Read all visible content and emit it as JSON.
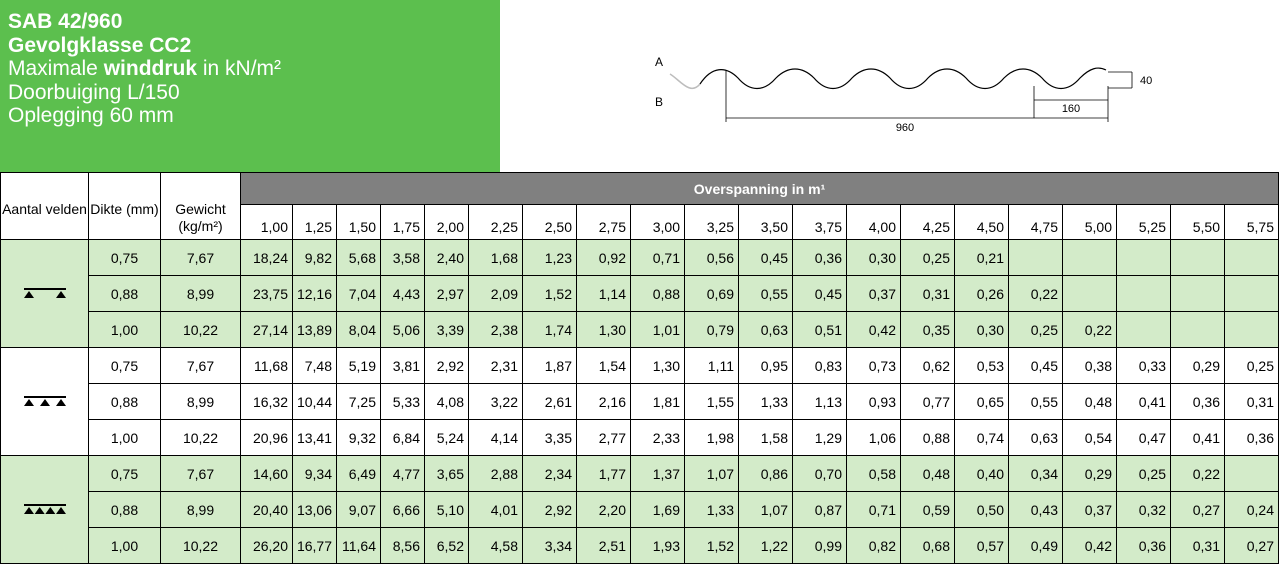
{
  "header": {
    "title": "SAB 42/960",
    "subtitle": "Gevolgklasse CC2",
    "line3_pre": "Maximale ",
    "line3_bold": "winddruk",
    "line3_post": " in kN/m²",
    "line4": "Doorbuiging L/150",
    "line5": "Oplegging 60 mm"
  },
  "diagram": {
    "label_a": "A",
    "label_b": "B",
    "dim_height": "40",
    "dim_pitch": "160",
    "dim_width": "960"
  },
  "table": {
    "col_aantal": "Aantal velden",
    "col_dikte": "Dikte (mm)",
    "col_gewicht": "Gewicht (kg/m²)",
    "span_header": "Overspanning in m¹",
    "spans": [
      "1,00",
      "1,25",
      "1,50",
      "1,75",
      "2,00",
      "2,25",
      "2,50",
      "2,75",
      "3,00",
      "3,25",
      "3,50",
      "3,75",
      "4,00",
      "4,25",
      "4,50",
      "4,75",
      "5,00",
      "5,25",
      "5,50",
      "5,75"
    ],
    "groups": [
      {
        "icon": "single-span-icon",
        "rows": [
          {
            "dikte": "0,75",
            "gewicht": "7,67",
            "values": [
              "18,24",
              "9,82",
              "5,68",
              "3,58",
              "2,40",
              "1,68",
              "1,23",
              "0,92",
              "0,71",
              "0,56",
              "0,45",
              "0,36",
              "0,30",
              "0,25",
              "0,21",
              "",
              "",
              "",
              "",
              ""
            ]
          },
          {
            "dikte": "0,88",
            "gewicht": "8,99",
            "values": [
              "23,75",
              "12,16",
              "7,04",
              "4,43",
              "2,97",
              "2,09",
              "1,52",
              "1,14",
              "0,88",
              "0,69",
              "0,55",
              "0,45",
              "0,37",
              "0,31",
              "0,26",
              "0,22",
              "",
              "",
              "",
              ""
            ]
          },
          {
            "dikte": "1,00",
            "gewicht": "10,22",
            "values": [
              "27,14",
              "13,89",
              "8,04",
              "5,06",
              "3,39",
              "2,38",
              "1,74",
              "1,30",
              "1,01",
              "0,79",
              "0,63",
              "0,51",
              "0,42",
              "0,35",
              "0,30",
              "0,25",
              "0,22",
              "",
              "",
              ""
            ]
          }
        ]
      },
      {
        "icon": "double-span-icon",
        "rows": [
          {
            "dikte": "0,75",
            "gewicht": "7,67",
            "values": [
              "11,68",
              "7,48",
              "5,19",
              "3,81",
              "2,92",
              "2,31",
              "1,87",
              "1,54",
              "1,30",
              "1,11",
              "0,95",
              "0,83",
              "0,73",
              "0,62",
              "0,53",
              "0,45",
              "0,38",
              "0,33",
              "0,29",
              "0,25"
            ]
          },
          {
            "dikte": "0,88",
            "gewicht": "8,99",
            "values": [
              "16,32",
              "10,44",
              "7,25",
              "5,33",
              "4,08",
              "3,22",
              "2,61",
              "2,16",
              "1,81",
              "1,55",
              "1,33",
              "1,13",
              "0,93",
              "0,77",
              "0,65",
              "0,55",
              "0,48",
              "0,41",
              "0,36",
              "0,31"
            ]
          },
          {
            "dikte": "1,00",
            "gewicht": "10,22",
            "values": [
              "20,96",
              "13,41",
              "9,32",
              "6,84",
              "5,24",
              "4,14",
              "3,35",
              "2,77",
              "2,33",
              "1,98",
              "1,58",
              "1,29",
              "1,06",
              "0,88",
              "0,74",
              "0,63",
              "0,54",
              "0,47",
              "0,41",
              "0,36"
            ]
          }
        ]
      },
      {
        "icon": "triple-span-icon",
        "rows": [
          {
            "dikte": "0,75",
            "gewicht": "7,67",
            "values": [
              "14,60",
              "9,34",
              "6,49",
              "4,77",
              "3,65",
              "2,88",
              "2,34",
              "1,77",
              "1,37",
              "1,07",
              "0,86",
              "0,70",
              "0,58",
              "0,48",
              "0,40",
              "0,34",
              "0,29",
              "0,25",
              "0,22",
              ""
            ]
          },
          {
            "dikte": "0,88",
            "gewicht": "8,99",
            "values": [
              "20,40",
              "13,06",
              "9,07",
              "6,66",
              "5,10",
              "4,01",
              "2,92",
              "2,20",
              "1,69",
              "1,33",
              "1,07",
              "0,87",
              "0,71",
              "0,59",
              "0,50",
              "0,43",
              "0,37",
              "0,32",
              "0,27",
              "0,24"
            ]
          },
          {
            "dikte": "1,00",
            "gewicht": "10,22",
            "values": [
              "26,20",
              "16,77",
              "11,64",
              "8,56",
              "6,52",
              "4,58",
              "3,34",
              "2,51",
              "1,93",
              "1,52",
              "1,22",
              "0,99",
              "0,82",
              "0,68",
              "0,57",
              "0,49",
              "0,42",
              "0,36",
              "0,31",
              "0,27"
            ]
          }
        ]
      }
    ]
  }
}
